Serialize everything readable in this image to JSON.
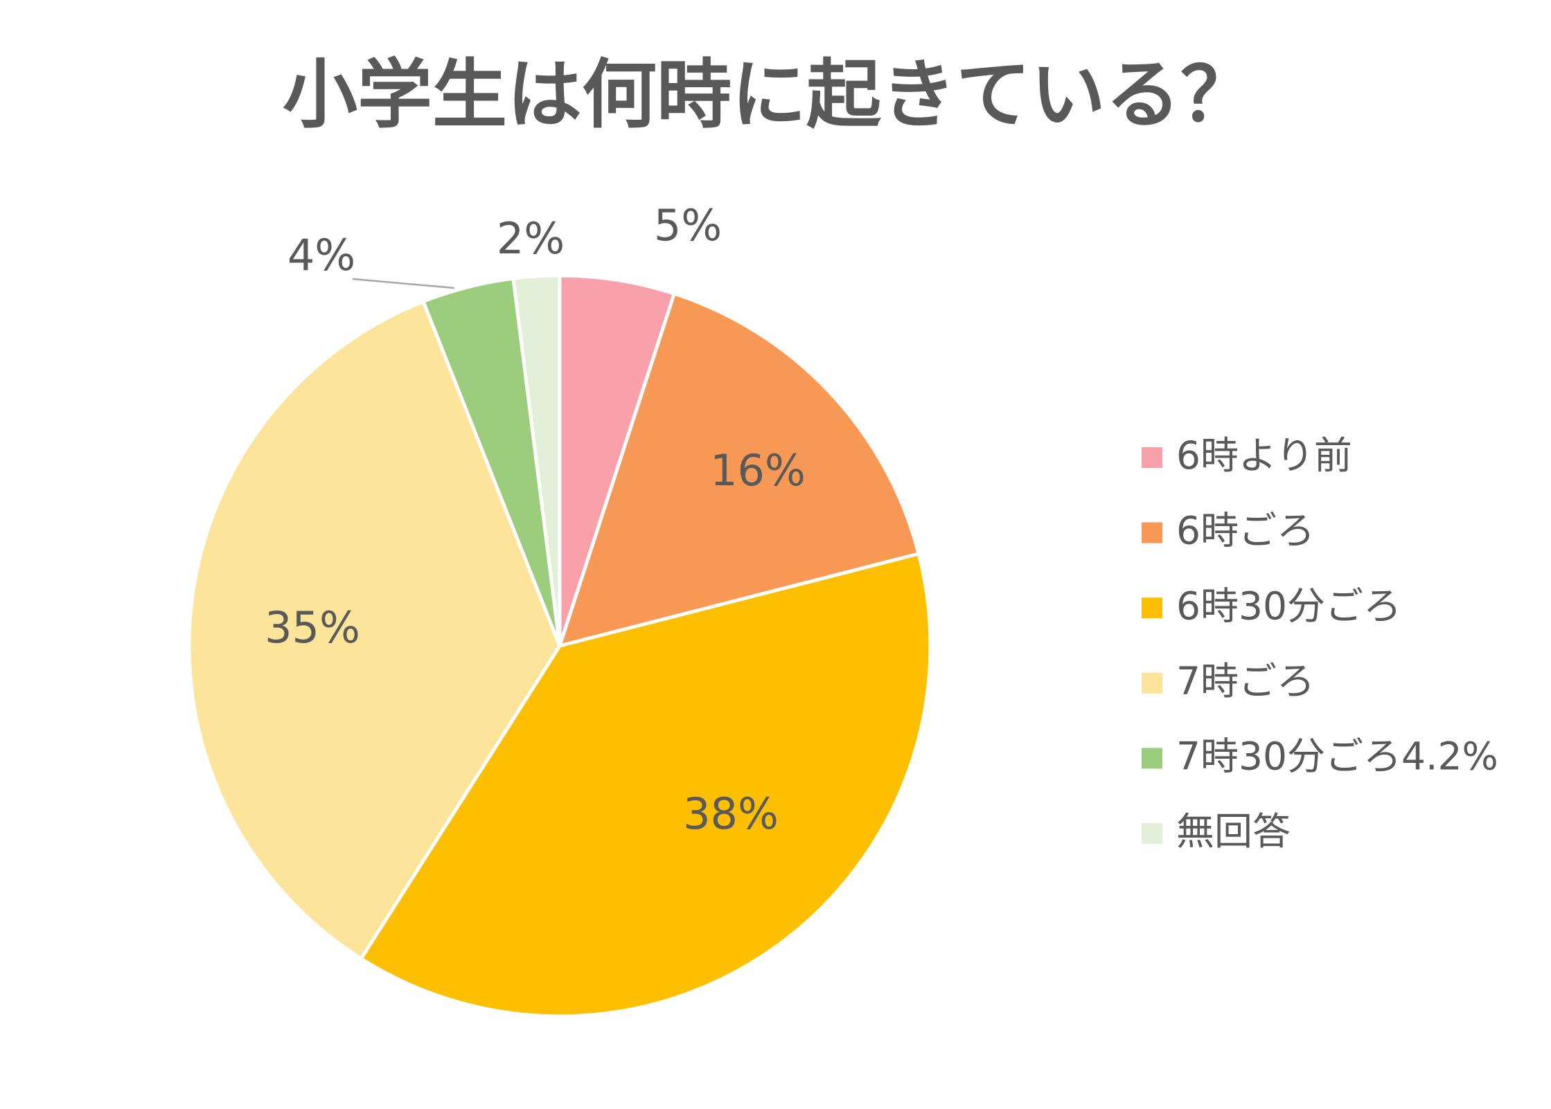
{
  "chart_data": {
    "type": "pie",
    "title": "小学生は何時に起きている？",
    "categories": [
      "6時より前",
      "6時ごろ",
      "6時30分ごろ",
      "7時ごろ",
      "7時30分ごろ4.2%",
      "無回答"
    ],
    "values": [
      5,
      16,
      38,
      35,
      4,
      2
    ],
    "value_labels": [
      "5%",
      "16%",
      "38%",
      "35%",
      "4%",
      "2%"
    ],
    "colors": [
      "#f9a1ab",
      "#f79855",
      "#fdbf00",
      "#fde49b",
      "#9ccd7d",
      "#e2efd9"
    ],
    "legend": "right"
  }
}
